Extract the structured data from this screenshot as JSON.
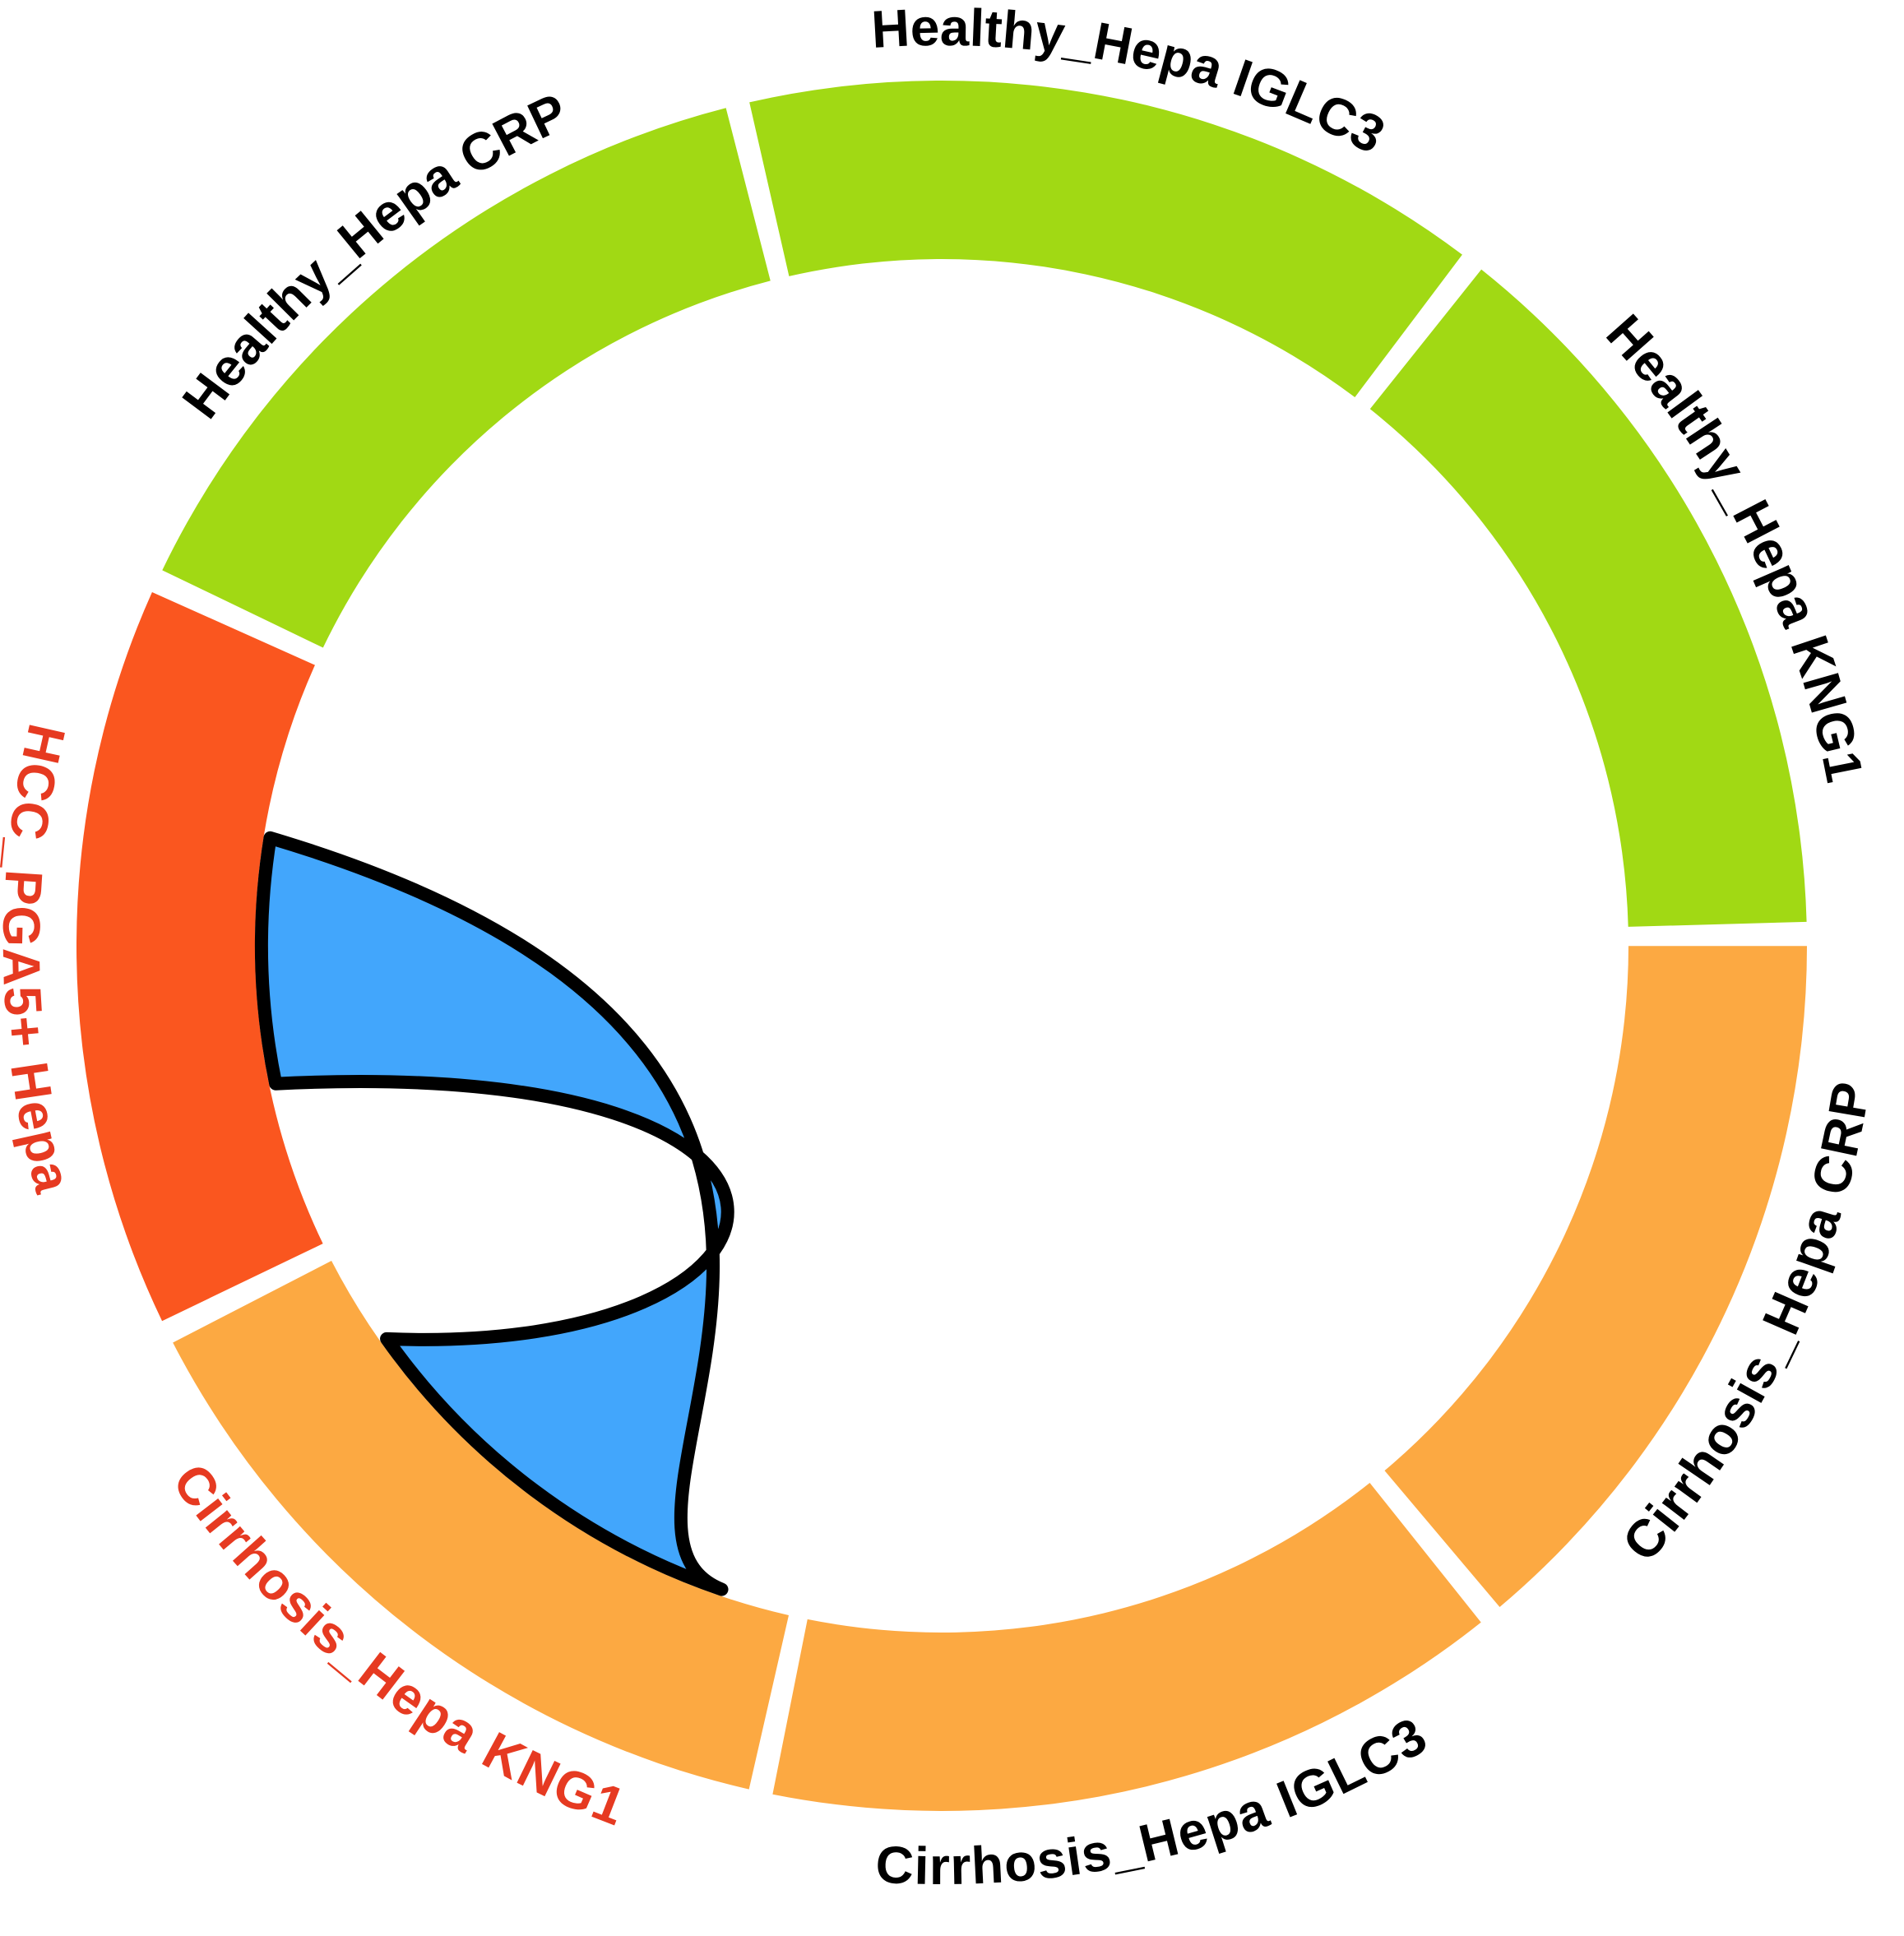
{
  "chart_data": {
    "type": "chord",
    "sectors": [
      {
        "name": "HCC_PGA5+ Hepa",
        "color": "#fa561f",
        "label_color": "#e63a21",
        "size": 1
      },
      {
        "name": "Healthy_Hepa CRP",
        "color": "#a1d914",
        "label_color": "#000000",
        "size": 1
      },
      {
        "name": "Healthy_Hepa IGLC3",
        "color": "#a1d914",
        "label_color": "#000000",
        "size": 1
      },
      {
        "name": "Healthy_Hepa KNG1",
        "color": "#a1d914",
        "label_color": "#000000",
        "size": 1
      },
      {
        "name": "Cirrhosis_Hepa CRP",
        "color": "#fca942",
        "label_color": "#000000",
        "size": 1
      },
      {
        "name": "Cirrhosis_Hepa IGLC3",
        "color": "#fca942",
        "label_color": "#000000",
        "size": 1
      },
      {
        "name": "Cirrhosis_Hepa KNG1",
        "color": "#fca942",
        "label_color": "#e63a21",
        "size": 1
      }
    ],
    "links": [
      {
        "from": "HCC_PGA5+ Hepa",
        "to": "Cirrhosis_Hepa KNG1",
        "color": "#42a6fc",
        "border": "#000000"
      }
    ]
  }
}
